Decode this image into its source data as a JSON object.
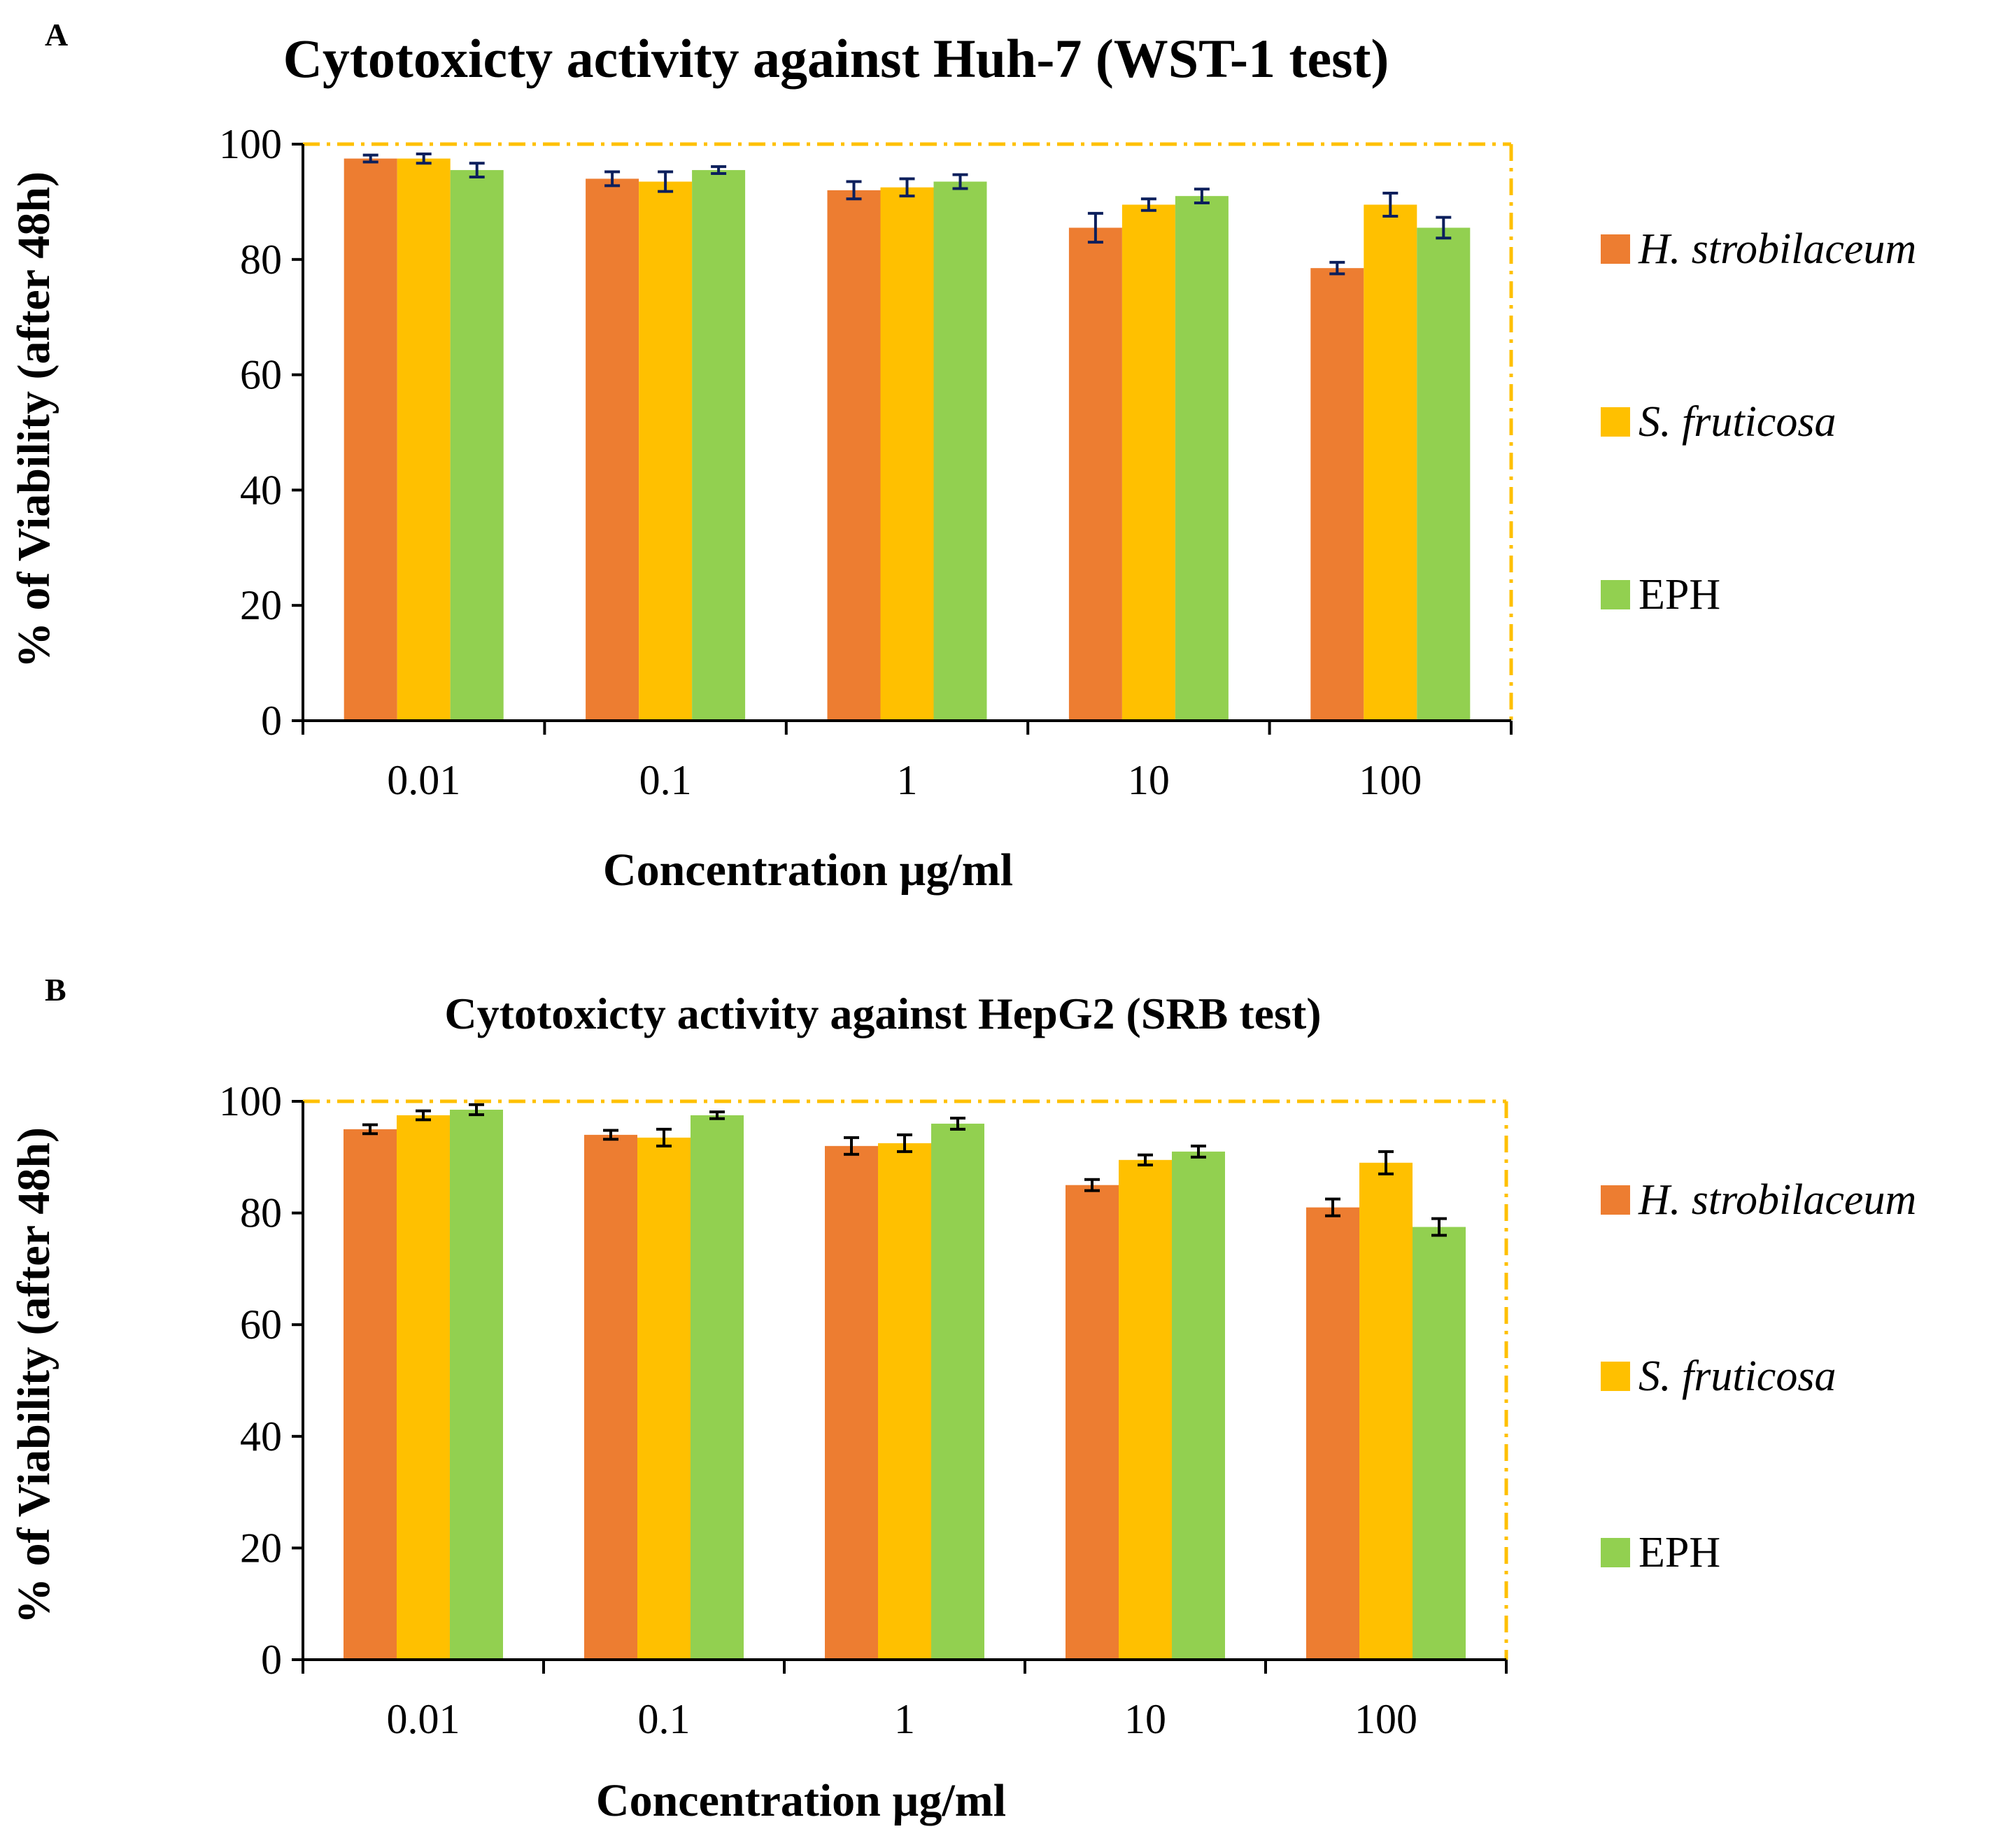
{
  "series_colors": {
    "H. strobilaceum": "#ed7d31",
    "S. fruticosa": "#ffc000",
    "EPH": "#92d050"
  },
  "frame_color": "#ffc000",
  "errorbar_colors": [
    "#0b1f5c",
    "#000000"
  ],
  "chart_data": [
    {
      "panel": "A",
      "type": "bar",
      "title": "Cytotoxicty activity against Huh-7 (WST-1 test)",
      "xlabel": "Concentration µg/ml",
      "ylabel": "% of Viability (after 48h)",
      "ylim": [
        0,
        100
      ],
      "yticks": [
        0,
        20,
        40,
        60,
        80,
        100
      ],
      "categories": [
        "0.01",
        "0.1",
        "1",
        "10",
        "100"
      ],
      "series": [
        {
          "name": "H. strobilaceum",
          "italic": true,
          "values": [
            97.5,
            94,
            92,
            85.5,
            78.5
          ],
          "errors": [
            0.6,
            1.2,
            1.5,
            2.5,
            1.0
          ]
        },
        {
          "name": "S. fruticosa",
          "italic": true,
          "values": [
            97.5,
            93.5,
            92.5,
            89.5,
            89.5
          ],
          "errors": [
            0.8,
            1.7,
            1.5,
            1.0,
            2.0
          ]
        },
        {
          "name": "EPH",
          "italic": false,
          "values": [
            95.5,
            95.5,
            93.5,
            91,
            85.5
          ],
          "errors": [
            1.2,
            0.6,
            1.2,
            1.2,
            1.8
          ]
        }
      ],
      "legend": [
        "H. strobilaceum",
        "S. fruticosa",
        "EPH"
      ],
      "legend_position": "right"
    },
    {
      "panel": "B",
      "type": "bar",
      "title": "Cytotoxicty activity against HepG2 (SRB test)",
      "xlabel": "Concentration µg/ml",
      "ylabel": "% of Viability (after 48h)",
      "ylim": [
        0,
        100
      ],
      "yticks": [
        0,
        20,
        40,
        60,
        80,
        100
      ],
      "categories": [
        "0.01",
        "0.1",
        "1",
        "10",
        "100"
      ],
      "series": [
        {
          "name": "H. strobilaceum",
          "italic": true,
          "values": [
            95,
            94,
            92,
            85,
            81
          ],
          "errors": [
            0.8,
            0.8,
            1.5,
            1.0,
            1.5
          ]
        },
        {
          "name": "S. fruticosa",
          "italic": true,
          "values": [
            97.5,
            93.5,
            92.5,
            89.5,
            89
          ],
          "errors": [
            0.8,
            1.5,
            1.5,
            0.9,
            2.0
          ]
        },
        {
          "name": "EPH",
          "italic": false,
          "values": [
            98.5,
            97.5,
            96,
            91,
            77.5
          ],
          "errors": [
            0.9,
            0.6,
            1.0,
            1.0,
            1.5
          ]
        }
      ],
      "legend": [
        "H. strobilaceum",
        "S. fruticosa",
        "EPH"
      ],
      "legend_position": "right"
    }
  ]
}
